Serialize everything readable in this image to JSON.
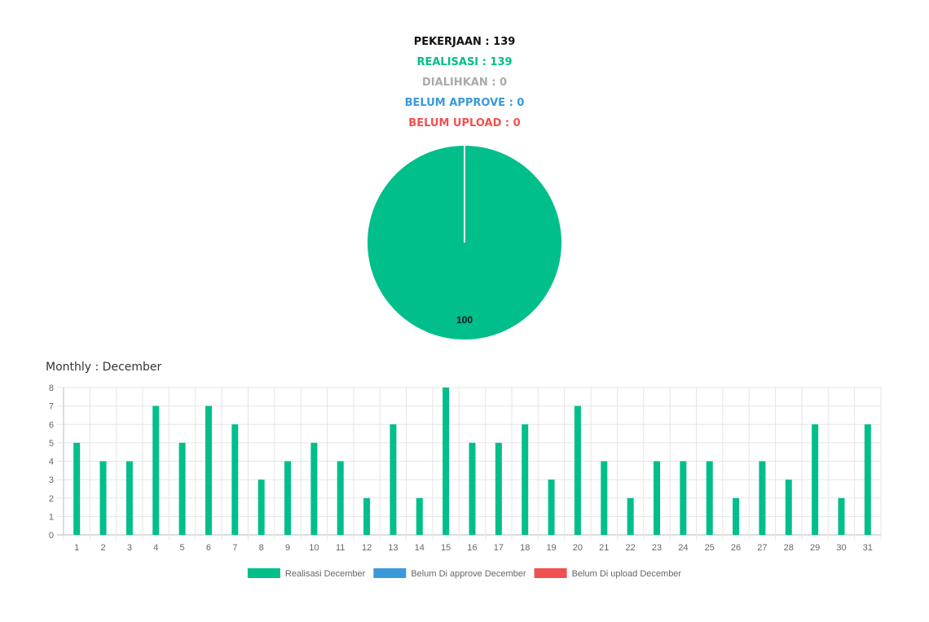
{
  "summary": {
    "pekerjaan": "PEKERJAAN : 139",
    "realisasi": "REALISASI : 139",
    "dialihkan": "DIALIHKAN : 0",
    "belum_approve": "BELUM APPROVE : 0",
    "belum_upload": "BELUM UPLOAD : 0"
  },
  "colors": {
    "pekerjaan": "#111111",
    "realisasi": "#00bf8a",
    "dialihkan": "#aaaaaa",
    "belum_approve": "#3a9ad9",
    "belum_upload": "#f15050",
    "grid": "#e5e5e5",
    "tick_text": "#666666",
    "legend_text": "#666666"
  },
  "monthly_title": "Monthly : December",
  "chart_data": [
    {
      "type": "pie",
      "slices": [
        {
          "name": "REALISASI",
          "value": 100,
          "label": "100",
          "color": "#00bf8a"
        },
        {
          "name": "DIALIHKAN",
          "value": 0,
          "color": "#aaaaaa"
        },
        {
          "name": "BELUM APPROVE",
          "value": 0,
          "color": "#3a9ad9"
        },
        {
          "name": "BELUM UPLOAD",
          "value": 0,
          "color": "#f15050"
        }
      ]
    },
    {
      "type": "bar",
      "categories": [
        "1",
        "2",
        "3",
        "4",
        "5",
        "6",
        "7",
        "8",
        "9",
        "10",
        "11",
        "12",
        "13",
        "14",
        "15",
        "16",
        "17",
        "18",
        "19",
        "20",
        "21",
        "22",
        "23",
        "24",
        "25",
        "26",
        "27",
        "28",
        "29",
        "30",
        "31"
      ],
      "series": [
        {
          "name": "Realisasi December",
          "color": "#00bf8a",
          "values": [
            5,
            4,
            4,
            7,
            5,
            7,
            6,
            3,
            4,
            5,
            4,
            2,
            6,
            2,
            8,
            5,
            5,
            6,
            3,
            7,
            4,
            2,
            4,
            4,
            4,
            2,
            4,
            3,
            6,
            2,
            6
          ]
        },
        {
          "name": "Belum Di approve December",
          "color": "#3a9ad9",
          "values": [
            0,
            0,
            0,
            0,
            0,
            0,
            0,
            0,
            0,
            0,
            0,
            0,
            0,
            0,
            0,
            0,
            0,
            0,
            0,
            0,
            0,
            0,
            0,
            0,
            0,
            0,
            0,
            0,
            0,
            0,
            0
          ]
        },
        {
          "name": "Belum Di upload December",
          "color": "#f15050",
          "values": [
            0,
            0,
            0,
            0,
            0,
            0,
            0,
            0,
            0,
            0,
            0,
            0,
            0,
            0,
            0,
            0,
            0,
            0,
            0,
            0,
            0,
            0,
            0,
            0,
            0,
            0,
            0,
            0,
            0,
            0,
            0
          ]
        }
      ],
      "ylim": [
        0,
        8
      ],
      "yticks": [
        "0",
        "1",
        "2",
        "3",
        "4",
        "5",
        "6",
        "7",
        "8"
      ],
      "grid": true,
      "legend": "bottom"
    }
  ]
}
